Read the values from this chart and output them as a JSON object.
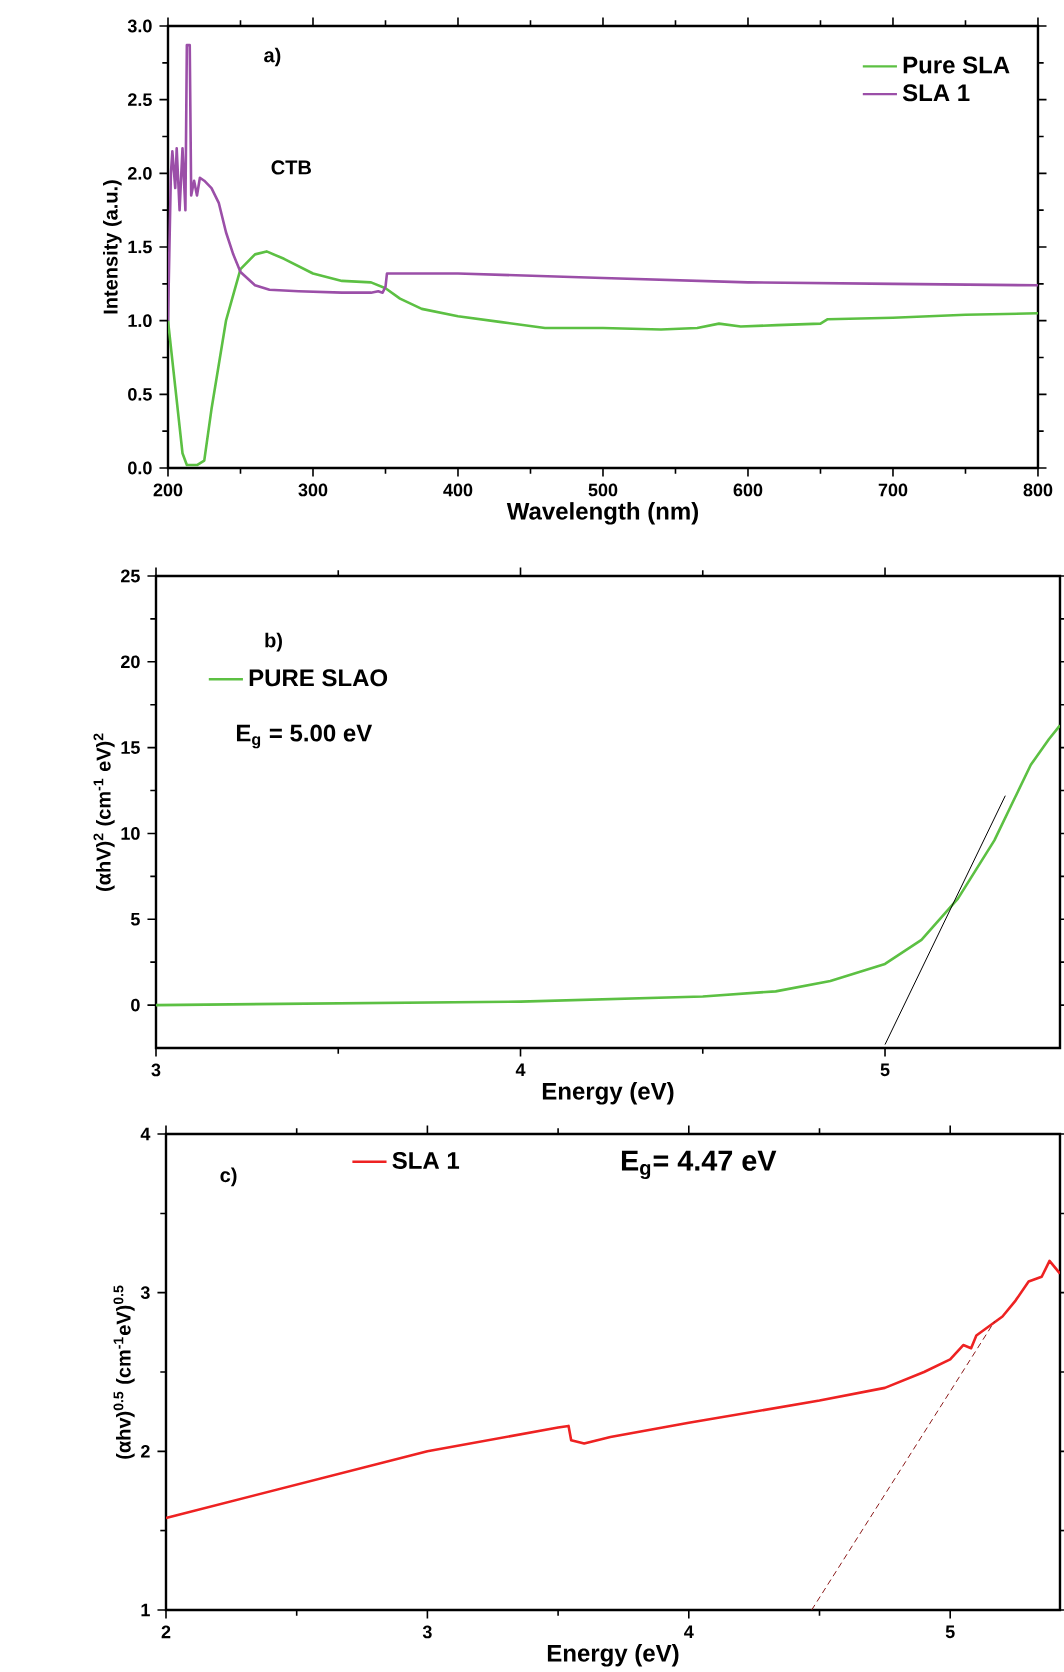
{
  "chart_data": [
    {
      "type": "line",
      "title": "a)",
      "xlabel": "Wavelength (nm)",
      "ylabel": "Intensity (a.u.)",
      "xlim": [
        200,
        800
      ],
      "ylim": [
        0,
        3
      ],
      "xticks": [
        200,
        300,
        400,
        500,
        600,
        700,
        800
      ],
      "yticks": [
        {
          "value": 0,
          "label": "0.0"
        },
        {
          "value": 0.5,
          "label": "0.5"
        },
        {
          "value": 1,
          "label": "1.0"
        },
        {
          "value": 1.5,
          "label": "1.5"
        },
        {
          "value": 2,
          "label": "2.0"
        },
        {
          "value": 2.5,
          "label": "2.5"
        },
        {
          "value": 3,
          "label": "3.0"
        }
      ],
      "legend": "top right",
      "annotations": [
        "CTB"
      ],
      "series": [
        {
          "name": "Pure SLA",
          "color": "#5cc043",
          "x": [
            200,
            205,
            210,
            213,
            220,
            225,
            230,
            240,
            250,
            260,
            268,
            280,
            300,
            320,
            340,
            350,
            360,
            375,
            400,
            430,
            460,
            480,
            500,
            540,
            565,
            580,
            595,
            620,
            650,
            655,
            700,
            750,
            800
          ],
          "values": [
            1.0,
            0.55,
            0.1,
            0.02,
            0.02,
            0.05,
            0.4,
            1.0,
            1.35,
            1.45,
            1.47,
            1.42,
            1.32,
            1.27,
            1.26,
            1.22,
            1.15,
            1.08,
            1.03,
            0.99,
            0.95,
            0.95,
            0.95,
            0.94,
            0.95,
            0.98,
            0.96,
            0.97,
            0.98,
            1.01,
            1.02,
            1.04,
            1.05
          ]
        },
        {
          "name": "SLA 1",
          "color": "#9b4fa8",
          "x": [
            200,
            202,
            203,
            205,
            206,
            208,
            210,
            212,
            213,
            215,
            216,
            218,
            220,
            222,
            225,
            230,
            235,
            240,
            245,
            250,
            260,
            270,
            290,
            320,
            340,
            345,
            348,
            350,
            351,
            400,
            500,
            600,
            700,
            800
          ],
          "values": [
            1.0,
            2.0,
            2.15,
            1.9,
            2.17,
            1.75,
            2.17,
            1.75,
            2.87,
            2.87,
            1.85,
            1.95,
            1.85,
            1.97,
            1.95,
            1.9,
            1.8,
            1.6,
            1.45,
            1.33,
            1.24,
            1.21,
            1.2,
            1.19,
            1.19,
            1.2,
            1.19,
            1.23,
            1.32,
            1.32,
            1.29,
            1.26,
            1.25,
            1.24
          ]
        }
      ]
    },
    {
      "type": "line",
      "title": "b)",
      "xlabel": "Energy (eV)",
      "ylabel": "(αhV)$^{2}$ (cm$^{-1}$ eV)$^{2}$",
      "xlim": [
        3,
        5.48
      ],
      "ylim": [
        -2.5,
        25
      ],
      "xticks": [
        3,
        4,
        5
      ],
      "yticks": [
        0,
        5,
        10,
        15,
        20,
        25
      ],
      "legend": "top left",
      "annotations": [
        "E$_{g}$ = 5.00 eV"
      ],
      "series": [
        {
          "name": "PURE SLAO",
          "color": "#5cc043",
          "x": [
            3,
            3.5,
            4,
            4.5,
            4.7,
            4.85,
            5,
            5.1,
            5.2,
            5.3,
            5.35,
            5.4,
            5.45,
            5.48
          ],
          "values": [
            0,
            0.1,
            0.2,
            0.5,
            0.8,
            1.4,
            2.4,
            3.8,
            6.2,
            9.6,
            11.8,
            14.0,
            15.5,
            16.3
          ]
        },
        {
          "type": "line",
          "color": "#000000",
          "x": [
            5.33,
            5.0
          ],
          "values": [
            12.2,
            -2.3
          ]
        }
      ]
    },
    {
      "type": "line",
      "title": "c)",
      "xlabel": "Energy (eV)",
      "ylabel": "(αhv)$^{0.5}$ (cm$^{-1}$eV)$^{0.5}$",
      "xlim": [
        2,
        5.42
      ],
      "ylim": [
        1,
        4
      ],
      "xticks": [
        2,
        3,
        4,
        5
      ],
      "yticks": [
        1,
        2,
        3,
        4
      ],
      "legend": "top",
      "annotations": [
        "E$_{g}$= 4.47 eV"
      ],
      "series": [
        {
          "name": "SLA 1",
          "color": "#ee2222",
          "x": [
            2,
            3,
            3.5,
            3.54,
            3.55,
            3.6,
            3.7,
            4,
            4.5,
            4.75,
            4.9,
            5.0,
            5.05,
            5.08,
            5.1,
            5.2,
            5.25,
            5.3,
            5.35,
            5.38,
            5.42
          ],
          "values": [
            1.58,
            2.0,
            2.15,
            2.16,
            2.07,
            2.05,
            2.09,
            2.18,
            2.32,
            2.4,
            2.5,
            2.58,
            2.67,
            2.65,
            2.73,
            2.85,
            2.95,
            3.07,
            3.1,
            3.2,
            3.12
          ]
        },
        {
          "type": "line",
          "color": "#8b1a1a",
          "line_style": "dashed",
          "x": [
            4.47,
            5.17
          ],
          "values": [
            1.0,
            2.82
          ]
        }
      ]
    }
  ]
}
